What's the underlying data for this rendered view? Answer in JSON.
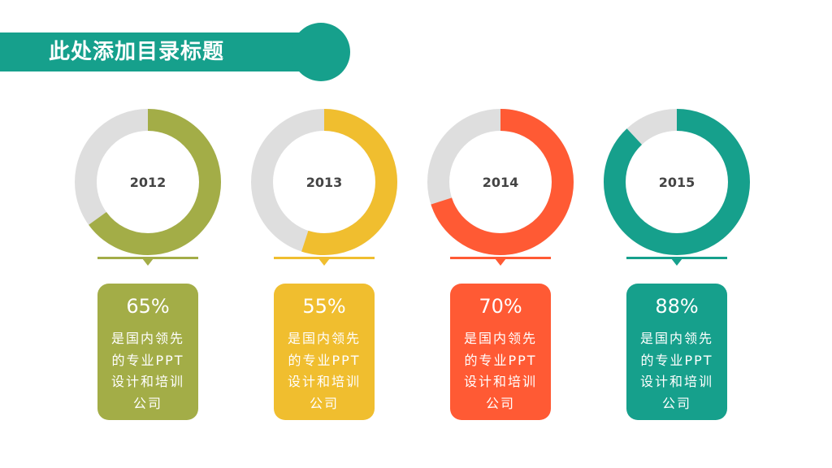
{
  "header": {
    "title": "此处添加目录标题"
  },
  "chart_data": [
    {
      "type": "donut",
      "title": "2012",
      "values": [
        65
      ],
      "value_labels": [
        "65%"
      ],
      "color": "#a3ad47",
      "description": [
        "是国内领先",
        "的专业PPT",
        "设计和培训",
        "公司"
      ]
    },
    {
      "type": "donut",
      "title": "2013",
      "values": [
        55
      ],
      "value_labels": [
        "55%"
      ],
      "color": "#f0be2f",
      "description": [
        "是国内领先",
        "的专业PPT",
        "设计和培训",
        "公司"
      ]
    },
    {
      "type": "donut",
      "title": "2014",
      "values": [
        70
      ],
      "value_labels": [
        "70%"
      ],
      "color": "#ff5a34",
      "description": [
        "是国内领先",
        "的专业PPT",
        "设计和培训",
        "公司"
      ]
    },
    {
      "type": "donut",
      "title": "2015",
      "values": [
        88
      ],
      "value_labels": [
        "88%"
      ],
      "color": "#16a08c",
      "description": [
        "是国内领先",
        "的专业PPT",
        "设计和培训",
        "公司"
      ]
    }
  ]
}
